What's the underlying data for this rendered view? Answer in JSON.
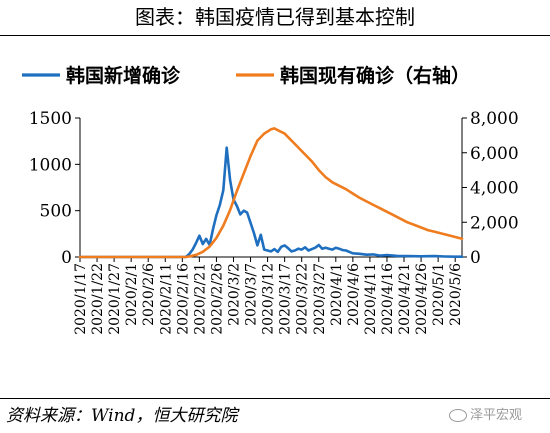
{
  "title": "图表：韩国疫情已得到基本控制",
  "source": "资料来源：Wind，恒大研究院",
  "watermark": "泽平宏观",
  "chart_data": {
    "type": "line",
    "title": "图表：韩国疫情已得到基本控制",
    "x": [
      "2020/1/17",
      "2020/1/22",
      "2020/1/27",
      "2020/2/1",
      "2020/2/6",
      "2020/2/11",
      "2020/2/16",
      "2020/2/21",
      "2020/2/26",
      "2020/3/2",
      "2020/3/7",
      "2020/3/12",
      "2020/3/17",
      "2020/3/22",
      "2020/3/27",
      "2020/4/1",
      "2020/4/6",
      "2020/4/11",
      "2020/4/16",
      "2020/4/21",
      "2020/4/26",
      "2020/5/1",
      "2020/5/6"
    ],
    "series": [
      {
        "name": "韩国新增确诊",
        "axis": "left",
        "color": "#1f6fc0",
        "values": [
          [
            0,
            0
          ],
          [
            31,
            0
          ],
          [
            32,
            30
          ],
          [
            33,
            80
          ],
          [
            34,
            150
          ],
          [
            35,
            230
          ],
          [
            36,
            140
          ],
          [
            37,
            195
          ],
          [
            38,
            130
          ],
          [
            39,
            300
          ],
          [
            40,
            450
          ],
          [
            41,
            560
          ],
          [
            42,
            720
          ],
          [
            43,
            1180
          ],
          [
            44,
            830
          ],
          [
            45,
            620
          ],
          [
            46,
            550
          ],
          [
            47,
            460
          ],
          [
            48,
            500
          ],
          [
            49,
            480
          ],
          [
            50,
            370
          ],
          [
            51,
            260
          ],
          [
            52,
            125
          ],
          [
            53,
            240
          ],
          [
            54,
            80
          ],
          [
            55,
            70
          ],
          [
            56,
            60
          ],
          [
            57,
            85
          ],
          [
            58,
            55
          ],
          [
            59,
            110
          ],
          [
            60,
            125
          ],
          [
            61,
            95
          ],
          [
            62,
            60
          ],
          [
            63,
            70
          ],
          [
            64,
            90
          ],
          [
            65,
            80
          ],
          [
            66,
            105
          ],
          [
            67,
            70
          ],
          [
            68,
            85
          ],
          [
            69,
            100
          ],
          [
            70,
            130
          ],
          [
            71,
            90
          ],
          [
            72,
            100
          ],
          [
            73,
            90
          ],
          [
            74,
            80
          ],
          [
            75,
            100
          ],
          [
            76,
            90
          ],
          [
            77,
            75
          ],
          [
            78,
            70
          ],
          [
            79,
            55
          ],
          [
            80,
            40
          ],
          [
            82,
            35
          ],
          [
            84,
            25
          ],
          [
            86,
            28
          ],
          [
            88,
            15
          ],
          [
            90,
            20
          ],
          [
            93,
            12
          ],
          [
            96,
            10
          ],
          [
            100,
            8
          ],
          [
            104,
            10
          ],
          [
            107,
            5
          ],
          [
            110,
            3
          ],
          [
            112,
            3
          ]
        ]
      },
      {
        "name": "韩国现有确诊",
        "axis": "right",
        "color": "#ef7c1e",
        "values": [
          [
            0,
            0
          ],
          [
            31,
            0
          ],
          [
            32,
            30
          ],
          [
            34,
            120
          ],
          [
            36,
            300
          ],
          [
            38,
            600
          ],
          [
            40,
            1100
          ],
          [
            42,
            1800
          ],
          [
            44,
            2700
          ],
          [
            46,
            3800
          ],
          [
            48,
            4800
          ],
          [
            50,
            5800
          ],
          [
            52,
            6700
          ],
          [
            54,
            7100
          ],
          [
            56,
            7350
          ],
          [
            57,
            7400
          ],
          [
            58,
            7300
          ],
          [
            60,
            7100
          ],
          [
            62,
            6700
          ],
          [
            64,
            6300
          ],
          [
            66,
            5900
          ],
          [
            68,
            5500
          ],
          [
            70,
            5000
          ],
          [
            72,
            4600
          ],
          [
            74,
            4300
          ],
          [
            76,
            4100
          ],
          [
            78,
            3900
          ],
          [
            80,
            3650
          ],
          [
            82,
            3400
          ],
          [
            84,
            3200
          ],
          [
            86,
            3000
          ],
          [
            88,
            2800
          ],
          [
            90,
            2600
          ],
          [
            92,
            2400
          ],
          [
            94,
            2200
          ],
          [
            96,
            2000
          ],
          [
            98,
            1850
          ],
          [
            100,
            1700
          ],
          [
            102,
            1550
          ],
          [
            104,
            1450
          ],
          [
            106,
            1350
          ],
          [
            108,
            1250
          ],
          [
            110,
            1150
          ],
          [
            112,
            1050
          ]
        ]
      }
    ],
    "y_left": {
      "min": 0,
      "max": 1500,
      "ticks": [
        0,
        500,
        1000,
        1500
      ],
      "tick_labels": [
        "0",
        "500",
        "1000",
        "1500"
      ]
    },
    "y_right": {
      "min": 0,
      "max": 8000,
      "ticks": [
        0,
        2000,
        4000,
        6000,
        8000
      ],
      "tick_labels": [
        "0",
        "2,000",
        "4,000",
        "6,000",
        "8,000"
      ]
    },
    "x_index_range": [
      0,
      112
    ],
    "x_tick_step": 5,
    "legend": {
      "position": "top",
      "entries": [
        "韩国新增确诊",
        "韩国现有确诊（右轴）"
      ]
    },
    "grid": false
  }
}
